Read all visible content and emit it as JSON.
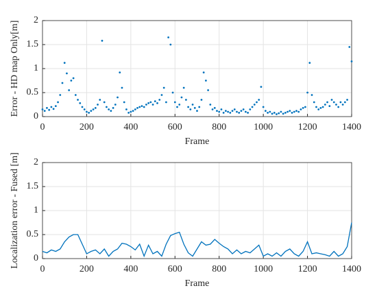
{
  "chart_data": [
    {
      "type": "scatter",
      "x_label": "Frame",
      "y_label": "Error - HD map Only[m]",
      "color": "#0072bd",
      "grid": true,
      "xlim": [
        0,
        1400
      ],
      "xticks": [
        0,
        200,
        400,
        600,
        800,
        1000,
        1200,
        1400
      ],
      "ylim": [
        0,
        2
      ],
      "yticks": [
        0,
        0.5,
        1,
        1.5,
        2
      ],
      "x": [
        0,
        10,
        20,
        30,
        40,
        50,
        60,
        70,
        80,
        90,
        100,
        110,
        120,
        130,
        140,
        150,
        160,
        170,
        180,
        190,
        200,
        210,
        220,
        230,
        240,
        250,
        260,
        270,
        280,
        290,
        300,
        310,
        320,
        330,
        340,
        350,
        360,
        370,
        380,
        390,
        400,
        410,
        420,
        430,
        440,
        450,
        460,
        470,
        480,
        490,
        500,
        510,
        520,
        530,
        540,
        550,
        560,
        570,
        580,
        590,
        600,
        610,
        620,
        630,
        640,
        650,
        660,
        670,
        680,
        690,
        700,
        710,
        720,
        730,
        740,
        750,
        760,
        770,
        780,
        790,
        800,
        810,
        820,
        830,
        840,
        850,
        860,
        870,
        880,
        890,
        900,
        910,
        920,
        930,
        940,
        950,
        960,
        970,
        980,
        990,
        1000,
        1010,
        1020,
        1030,
        1040,
        1050,
        1060,
        1070,
        1080,
        1090,
        1100,
        1110,
        1120,
        1130,
        1140,
        1150,
        1160,
        1170,
        1180,
        1190,
        1200,
        1210,
        1220,
        1230,
        1240,
        1250,
        1260,
        1270,
        1280,
        1290,
        1300,
        1310,
        1320,
        1330,
        1340,
        1350,
        1360,
        1370,
        1380,
        1390,
        1400
      ],
      "values": [
        0.15,
        0.12,
        0.18,
        0.14,
        0.2,
        0.16,
        0.22,
        0.3,
        0.45,
        0.7,
        1.12,
        0.9,
        0.55,
        0.75,
        0.8,
        0.45,
        0.35,
        0.28,
        0.2,
        0.15,
        0.1,
        0.08,
        0.12,
        0.15,
        0.18,
        0.25,
        0.35,
        1.58,
        0.3,
        0.2,
        0.15,
        0.12,
        0.18,
        0.25,
        0.4,
        0.92,
        0.6,
        0.3,
        0.15,
        0.08,
        0.1,
        0.12,
        0.15,
        0.18,
        0.2,
        0.22,
        0.2,
        0.25,
        0.28,
        0.3,
        0.25,
        0.32,
        0.28,
        0.35,
        0.45,
        0.6,
        0.3,
        1.65,
        1.5,
        0.5,
        0.3,
        0.2,
        0.25,
        0.4,
        0.6,
        0.35,
        0.2,
        0.15,
        0.25,
        0.18,
        0.12,
        0.2,
        0.35,
        0.92,
        0.75,
        0.55,
        0.25,
        0.15,
        0.18,
        0.12,
        0.1,
        0.15,
        0.08,
        0.12,
        0.1,
        0.08,
        0.12,
        0.15,
        0.1,
        0.08,
        0.12,
        0.15,
        0.1,
        0.08,
        0.15,
        0.2,
        0.25,
        0.3,
        0.35,
        0.62,
        0.2,
        0.12,
        0.08,
        0.1,
        0.06,
        0.08,
        0.05,
        0.07,
        0.1,
        0.06,
        0.08,
        0.1,
        0.12,
        0.08,
        0.1,
        0.12,
        0.1,
        0.15,
        0.18,
        0.2,
        0.5,
        1.12,
        0.45,
        0.3,
        0.2,
        0.15,
        0.18,
        0.2,
        0.25,
        0.3,
        0.22,
        0.35,
        0.3,
        0.25,
        0.2,
        0.3,
        0.25,
        0.3,
        0.35,
        1.45,
        1.15
      ]
    },
    {
      "type": "line",
      "x_label": "Frame",
      "y_label": "Localization error - Fused [m]",
      "color": "#0072bd",
      "grid": true,
      "xlim": [
        0,
        1400
      ],
      "xticks": [
        0,
        200,
        400,
        600,
        800,
        1000,
        1200,
        1400
      ],
      "ylim": [
        0,
        2
      ],
      "yticks": [
        0,
        0.5,
        1,
        1.5,
        2
      ],
      "x": [
        0,
        20,
        40,
        60,
        80,
        100,
        120,
        140,
        160,
        180,
        200,
        220,
        240,
        260,
        280,
        300,
        320,
        340,
        360,
        380,
        400,
        420,
        440,
        460,
        480,
        500,
        520,
        540,
        560,
        580,
        600,
        620,
        640,
        660,
        680,
        700,
        720,
        740,
        760,
        780,
        800,
        820,
        840,
        860,
        880,
        900,
        920,
        940,
        960,
        980,
        1000,
        1020,
        1040,
        1060,
        1080,
        1100,
        1120,
        1140,
        1160,
        1180,
        1200,
        1220,
        1240,
        1260,
        1280,
        1300,
        1320,
        1340,
        1360,
        1380,
        1400
      ],
      "values": [
        0.15,
        0.12,
        0.18,
        0.15,
        0.2,
        0.35,
        0.45,
        0.5,
        0.5,
        0.3,
        0.1,
        0.15,
        0.18,
        0.1,
        0.2,
        0.05,
        0.15,
        0.2,
        0.32,
        0.3,
        0.25,
        0.18,
        0.3,
        0.05,
        0.28,
        0.1,
        0.15,
        0.05,
        0.3,
        0.48,
        0.52,
        0.55,
        0.3,
        0.12,
        0.05,
        0.2,
        0.35,
        0.28,
        0.3,
        0.4,
        0.32,
        0.25,
        0.2,
        0.1,
        0.18,
        0.1,
        0.15,
        0.12,
        0.2,
        0.28,
        0.05,
        0.1,
        0.05,
        0.12,
        0.05,
        0.15,
        0.2,
        0.1,
        0.05,
        0.15,
        0.35,
        0.1,
        0.12,
        0.1,
        0.08,
        0.05,
        0.15,
        0.05,
        0.1,
        0.25,
        0.75
      ]
    }
  ]
}
